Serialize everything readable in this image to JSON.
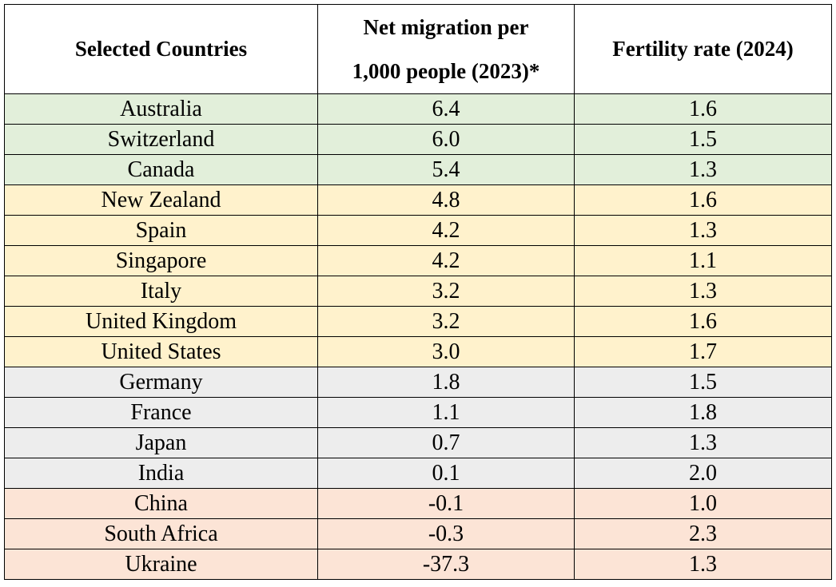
{
  "table": {
    "headers": {
      "country": "Selected Countries",
      "migration_line1": "Net migration per",
      "migration_line2": "1,000 people (2023)*",
      "fertility": "Fertility rate (2024)"
    },
    "group_colors": {
      "high_migration": "#e2efda",
      "medium_migration": "#fff2cc",
      "low_migration": "#ededed",
      "negative_migration": "#fce4d6"
    },
    "rows": [
      {
        "country": "Australia",
        "migration": "6.4",
        "fertility": "1.6",
        "group": "high_migration"
      },
      {
        "country": "Switzerland",
        "migration": "6.0",
        "fertility": "1.5",
        "group": "high_migration"
      },
      {
        "country": "Canada",
        "migration": "5.4",
        "fertility": "1.3",
        "group": "high_migration"
      },
      {
        "country": "New Zealand",
        "migration": "4.8",
        "fertility": "1.6",
        "group": "medium_migration"
      },
      {
        "country": "Spain",
        "migration": "4.2",
        "fertility": "1.3",
        "group": "medium_migration"
      },
      {
        "country": "Singapore",
        "migration": "4.2",
        "fertility": "1.1",
        "group": "medium_migration"
      },
      {
        "country": "Italy",
        "migration": "3.2",
        "fertility": "1.3",
        "group": "medium_migration"
      },
      {
        "country": "United Kingdom",
        "migration": "3.2",
        "fertility": "1.6",
        "group": "medium_migration"
      },
      {
        "country": "United States",
        "migration": "3.0",
        "fertility": "1.7",
        "group": "medium_migration"
      },
      {
        "country": "Germany",
        "migration": "1.8",
        "fertility": "1.5",
        "group": "low_migration"
      },
      {
        "country": "France",
        "migration": "1.1",
        "fertility": "1.8",
        "group": "low_migration"
      },
      {
        "country": "Japan",
        "migration": "0.7",
        "fertility": "1.3",
        "group": "low_migration"
      },
      {
        "country": "India",
        "migration": "0.1",
        "fertility": "2.0",
        "group": "low_migration"
      },
      {
        "country": "China",
        "migration": "-0.1",
        "fertility": "1.0",
        "group": "negative_migration"
      },
      {
        "country": "South Africa",
        "migration": "-0.3",
        "fertility": "2.3",
        "group": "negative_migration"
      },
      {
        "country": "Ukraine",
        "migration": "-37.3",
        "fertility": "1.3",
        "group": "negative_migration"
      }
    ]
  }
}
